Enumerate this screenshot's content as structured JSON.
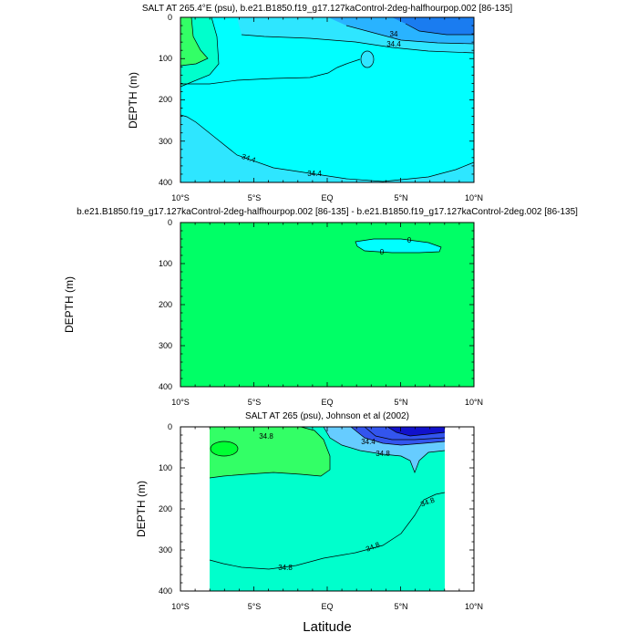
{
  "chart_data": [
    {
      "type": "contour",
      "title": "SALT AT 265.4°E (psu), b.e21.B1850.f19_g17.127kaControl-2deg-halfhourpop.002 [86-135]",
      "ylabel": "DEPTH (m)",
      "y_ticks": [
        "0",
        "100",
        "200",
        "300",
        "400"
      ],
      "x_ticks": [
        "10°S",
        "5°S",
        "EQ",
        "5°N",
        "10°N"
      ],
      "xlim": [
        -10,
        10
      ],
      "ylim": [
        0,
        400
      ],
      "contour_labels": [
        "34",
        "34.4",
        "34.4",
        "34.4"
      ],
      "colors": [
        "#1a7cf0",
        "#29b3ff",
        "#00ffff",
        "#2ee6ff",
        "#00ffcc",
        "#33ff66"
      ]
    },
    {
      "type": "contour",
      "title": "b.e21.B1850.f19_g17.127kaControl-2deg-halfhourpop.002 [86-135] - b.e21.B1850.f19_g17.127kaControl-2deg.002 [86-135]",
      "ylabel": "DEPTH (m)",
      "y_ticks": [
        "0",
        "100",
        "200",
        "300",
        "400"
      ],
      "x_ticks": [
        "10°S",
        "5°S",
        "EQ",
        "5°N",
        "10°N"
      ],
      "xlim": [
        -10,
        10
      ],
      "ylim": [
        0,
        400
      ],
      "contour_labels": [
        "0",
        "0"
      ],
      "colors": [
        "#00ff66",
        "#00ffff"
      ]
    },
    {
      "type": "contour",
      "title": "SALT AT 265 (psu), Johnson et al (2002)",
      "ylabel": "DEPTH (m)",
      "y_ticks": [
        "0",
        "100",
        "200",
        "300",
        "400"
      ],
      "x_ticks": [
        "10°S",
        "5°S",
        "EQ",
        "5°N",
        "10°N"
      ],
      "xlim": [
        -10,
        10
      ],
      "ylim": [
        0,
        400
      ],
      "contour_labels": [
        "34.8",
        "34.4",
        "34.8",
        "34.8",
        "34.8",
        "34.8"
      ],
      "colors": [
        "#1111cc",
        "#3355ee",
        "#66ccff",
        "#00ffcc",
        "#33ff66",
        "#00ff33"
      ],
      "xlabel": "Latitude"
    }
  ]
}
